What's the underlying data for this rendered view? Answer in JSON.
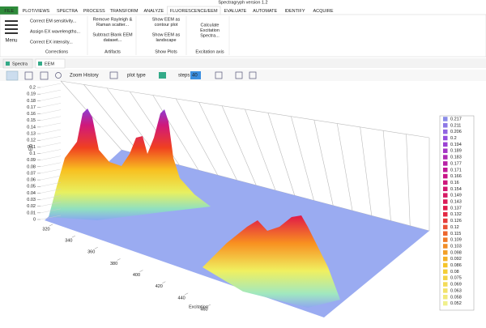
{
  "window_title": "Spectragryph version 1.2",
  "ribbon_tabs": [
    "FILE",
    "PLOT/VIEWS",
    "SPECTRA",
    "PROCESS",
    "TRANSFORM",
    "ANALYZE",
    "FLUORESCENCE/EEM",
    "EVALUATE",
    "AUTOMATE",
    "IDENTIFY",
    "ACQUIRE"
  ],
  "menu_label": "Menu",
  "ribbon_groups": [
    {
      "label": "Corrections",
      "buttons": [
        [
          "Correct EM sensitivity..."
        ],
        [
          "Assign EX wavelengths..."
        ],
        [
          "Correct EX intensity..."
        ]
      ]
    },
    {
      "label": "Artifacts",
      "buttons": [
        [
          "Remove Rayleigh &",
          "Raman scatter..."
        ],
        [
          "Subtract Blank EEM",
          "dataset..."
        ]
      ]
    },
    {
      "label": "Show Plots",
      "buttons": [
        [
          "Show EEM as",
          "contour plot"
        ],
        [
          "Show EEM as",
          "landscape"
        ]
      ]
    },
    {
      "label": "Excitation axis",
      "buttons": [
        [
          "Calculate",
          "Excitation",
          "Spectra..."
        ]
      ]
    }
  ],
  "document_tabs": [
    "Spectra",
    "EEM"
  ],
  "toolbar": {
    "zoom_history": "Zoom History",
    "plot_type": "plot type",
    "steps": "steps",
    "steps_value": "40"
  },
  "plot": {
    "z_axis_label": "Em",
    "x_axis_label": "Excitation",
    "zticks": [
      0.2,
      0.19,
      0.18,
      0.17,
      0.16,
      0.15,
      0.14,
      0.13,
      0.12,
      0.11,
      0.1,
      0.09,
      0.08,
      0.07,
      0.06,
      0.05,
      0.04,
      0.03,
      0.02,
      0.01,
      0
    ],
    "xticks": [
      320,
      340,
      360,
      380,
      400,
      420,
      440,
      460
    ],
    "legend": [
      0.217,
      0.211,
      0.206,
      0.2,
      0.194,
      0.189,
      0.183,
      0.177,
      0.171,
      0.166,
      0.16,
      0.154,
      0.149,
      0.143,
      0.137,
      0.132,
      0.126,
      0.12,
      0.115,
      0.109,
      0.103,
      0.098,
      0.092,
      0.086,
      0.08,
      0.075,
      0.069,
      0.063,
      0.058,
      0.052
    ]
  }
}
